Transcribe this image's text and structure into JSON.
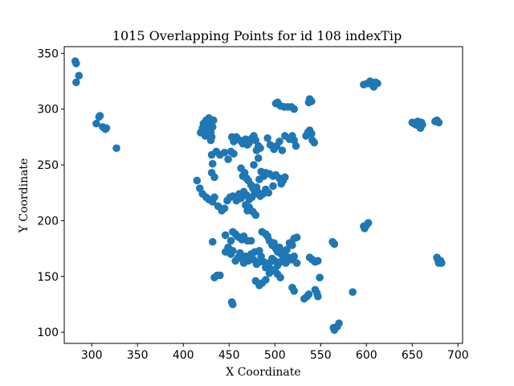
{
  "chart_data": {
    "type": "scatter",
    "title": "1015 Overlapping Points for id 108 indexTip",
    "xlabel": "X Coordinate",
    "ylabel": "Y Coordinate",
    "xlim": [
      270,
      705
    ],
    "ylim": [
      90,
      356
    ],
    "xticks": [
      300,
      350,
      400,
      450,
      500,
      550,
      600,
      650,
      700
    ],
    "yticks": [
      100,
      150,
      200,
      250,
      300,
      350
    ],
    "grid": false,
    "marker_color": "#1f77b4",
    "points": [
      [
        282,
        343
      ],
      [
        283,
        341
      ],
      [
        283,
        324
      ],
      [
        286,
        330
      ],
      [
        305,
        287
      ],
      [
        308,
        293
      ],
      [
        309,
        294
      ],
      [
        312,
        284
      ],
      [
        315,
        282
      ],
      [
        316,
        283
      ],
      [
        327,
        265
      ],
      [
        419,
        279
      ],
      [
        421,
        283
      ],
      [
        422,
        287
      ],
      [
        423,
        281
      ],
      [
        424,
        276
      ],
      [
        425,
        290
      ],
      [
        426,
        284
      ],
      [
        427,
        289
      ],
      [
        428,
        292
      ],
      [
        429,
        286
      ],
      [
        430,
        279
      ],
      [
        431,
        275
      ],
      [
        432,
        284
      ],
      [
        433,
        290
      ],
      [
        430,
        272
      ],
      [
        431,
        259
      ],
      [
        432,
        251
      ],
      [
        431,
        243
      ],
      [
        434,
        239
      ],
      [
        436,
        262
      ],
      [
        440,
        259
      ],
      [
        445,
        261
      ],
      [
        449,
        255
      ],
      [
        452,
        262
      ],
      [
        455,
        260
      ],
      [
        453,
        275
      ],
      [
        455,
        271
      ],
      [
        458,
        275
      ],
      [
        462,
        272
      ],
      [
        465,
        269
      ],
      [
        468,
        273
      ],
      [
        470,
        268
      ],
      [
        472,
        270
      ],
      [
        475,
        274
      ],
      [
        477,
        276
      ],
      [
        479,
        272
      ],
      [
        482,
        267
      ],
      [
        484,
        265
      ],
      [
        480,
        263
      ],
      [
        482,
        256
      ],
      [
        477,
        250
      ],
      [
        463,
        247
      ],
      [
        465,
        240
      ],
      [
        467,
        243
      ],
      [
        469,
        238
      ],
      [
        471,
        236
      ],
      [
        474,
        232
      ],
      [
        476,
        229
      ],
      [
        478,
        227
      ],
      [
        480,
        230
      ],
      [
        483,
        237
      ],
      [
        485,
        244
      ],
      [
        488,
        240
      ],
      [
        490,
        243
      ],
      [
        494,
        242
      ],
      [
        498,
        240
      ],
      [
        501,
        241
      ],
      [
        505,
        238
      ],
      [
        509,
        236
      ],
      [
        511,
        239
      ],
      [
        507,
        233
      ],
      [
        498,
        231
      ],
      [
        415,
        236
      ],
      [
        418,
        229
      ],
      [
        421,
        224
      ],
      [
        425,
        221
      ],
      [
        428,
        219
      ],
      [
        432,
        217
      ],
      [
        434,
        221
      ],
      [
        438,
        213
      ],
      [
        442,
        209
      ],
      [
        445,
        211
      ],
      [
        448,
        218
      ],
      [
        451,
        221
      ],
      [
        454,
        222
      ],
      [
        458,
        218
      ],
      [
        461,
        224
      ],
      [
        463,
        220
      ],
      [
        466,
        226
      ],
      [
        469,
        223
      ],
      [
        472,
        219
      ],
      [
        475,
        221
      ],
      [
        478,
        224
      ],
      [
        481,
        226
      ],
      [
        484,
        222
      ],
      [
        487,
        224
      ],
      [
        490,
        228
      ],
      [
        493,
        225
      ],
      [
        468,
        214
      ],
      [
        470,
        209
      ],
      [
        472,
        212
      ],
      [
        476,
        208
      ],
      [
        479,
        205
      ],
      [
        492,
        274
      ],
      [
        495,
        268
      ],
      [
        499,
        264
      ],
      [
        502,
        267
      ],
      [
        505,
        271
      ],
      [
        508,
        263
      ],
      [
        511,
        276
      ],
      [
        516,
        273
      ],
      [
        519,
        276
      ],
      [
        521,
        272
      ],
      [
        523,
        267
      ],
      [
        501,
        305
      ],
      [
        503,
        306
      ],
      [
        506,
        303
      ],
      [
        510,
        302
      ],
      [
        514,
        302
      ],
      [
        518,
        302
      ],
      [
        521,
        300
      ],
      [
        534,
        276
      ],
      [
        536,
        279
      ],
      [
        538,
        281
      ],
      [
        540,
        278
      ],
      [
        541,
        272
      ],
      [
        543,
        270
      ],
      [
        537,
        306
      ],
      [
        538,
        309
      ],
      [
        540,
        307
      ],
      [
        446,
        187
      ],
      [
        452,
        182
      ],
      [
        454,
        190
      ],
      [
        457,
        188
      ],
      [
        459,
        186
      ],
      [
        461,
        185
      ],
      [
        464,
        183
      ],
      [
        466,
        186
      ],
      [
        470,
        182
      ],
      [
        474,
        182
      ],
      [
        478,
        172
      ],
      [
        483,
        173
      ],
      [
        486,
        190
      ],
      [
        490,
        188
      ],
      [
        492,
        186
      ],
      [
        494,
        182
      ],
      [
        497,
        178
      ],
      [
        499,
        180
      ],
      [
        501,
        175
      ],
      [
        503,
        172
      ],
      [
        505,
        176
      ],
      [
        507,
        170
      ],
      [
        509,
        168
      ],
      [
        511,
        172
      ],
      [
        513,
        174
      ],
      [
        516,
        180
      ],
      [
        519,
        178
      ],
      [
        521,
        184
      ],
      [
        524,
        185
      ],
      [
        432,
        181
      ],
      [
        446,
        172
      ],
      [
        449,
        176
      ],
      [
        452,
        170
      ],
      [
        454,
        173
      ],
      [
        457,
        164
      ],
      [
        460,
        167
      ],
      [
        462,
        171
      ],
      [
        464,
        166
      ],
      [
        466,
        162
      ],
      [
        468,
        168
      ],
      [
        471,
        164
      ],
      [
        474,
        170
      ],
      [
        477,
        165
      ],
      [
        480,
        161
      ],
      [
        483,
        163
      ],
      [
        485,
        168
      ],
      [
        488,
        163
      ],
      [
        490,
        158
      ],
      [
        492,
        160
      ],
      [
        494,
        162
      ],
      [
        497,
        166
      ],
      [
        500,
        164
      ],
      [
        503,
        160
      ],
      [
        506,
        163
      ],
      [
        509,
        165
      ],
      [
        512,
        162
      ],
      [
        515,
        167
      ],
      [
        518,
        165
      ],
      [
        521,
        168
      ],
      [
        524,
        162
      ],
      [
        434,
        149
      ],
      [
        437,
        151
      ],
      [
        440,
        151
      ],
      [
        453,
        127
      ],
      [
        454,
        125
      ],
      [
        479,
        146
      ],
      [
        483,
        142
      ],
      [
        486,
        144
      ],
      [
        490,
        147
      ],
      [
        494,
        153
      ],
      [
        497,
        156
      ],
      [
        500,
        155
      ],
      [
        503,
        152
      ],
      [
        506,
        149
      ],
      [
        519,
        140
      ],
      [
        521,
        137
      ],
      [
        532,
        130
      ],
      [
        535,
        132
      ],
      [
        537,
        134
      ],
      [
        538,
        167
      ],
      [
        541,
        165
      ],
      [
        544,
        163
      ],
      [
        547,
        164
      ],
      [
        544,
        138
      ],
      [
        546,
        135
      ],
      [
        547,
        132
      ],
      [
        549,
        149
      ],
      [
        563,
        181
      ],
      [
        565,
        179
      ],
      [
        564,
        104
      ],
      [
        565,
        102
      ],
      [
        568,
        105
      ],
      [
        570,
        108
      ],
      [
        585,
        136
      ],
      [
        597,
        195
      ],
      [
        598,
        193
      ],
      [
        600,
        196
      ],
      [
        602,
        198
      ],
      [
        597,
        322
      ],
      [
        601,
        323
      ],
      [
        604,
        325
      ],
      [
        606,
        322
      ],
      [
        608,
        320
      ],
      [
        610,
        324
      ],
      [
        612,
        323
      ],
      [
        650,
        288
      ],
      [
        652,
        287
      ],
      [
        654,
        286
      ],
      [
        656,
        289
      ],
      [
        657,
        285
      ],
      [
        659,
        283
      ],
      [
        660,
        288
      ],
      [
        661,
        286
      ],
      [
        675,
        289
      ],
      [
        677,
        290
      ],
      [
        679,
        288
      ],
      [
        677,
        167
      ],
      [
        678,
        165
      ],
      [
        679,
        162
      ],
      [
        681,
        164
      ],
      [
        682,
        162
      ]
    ]
  }
}
